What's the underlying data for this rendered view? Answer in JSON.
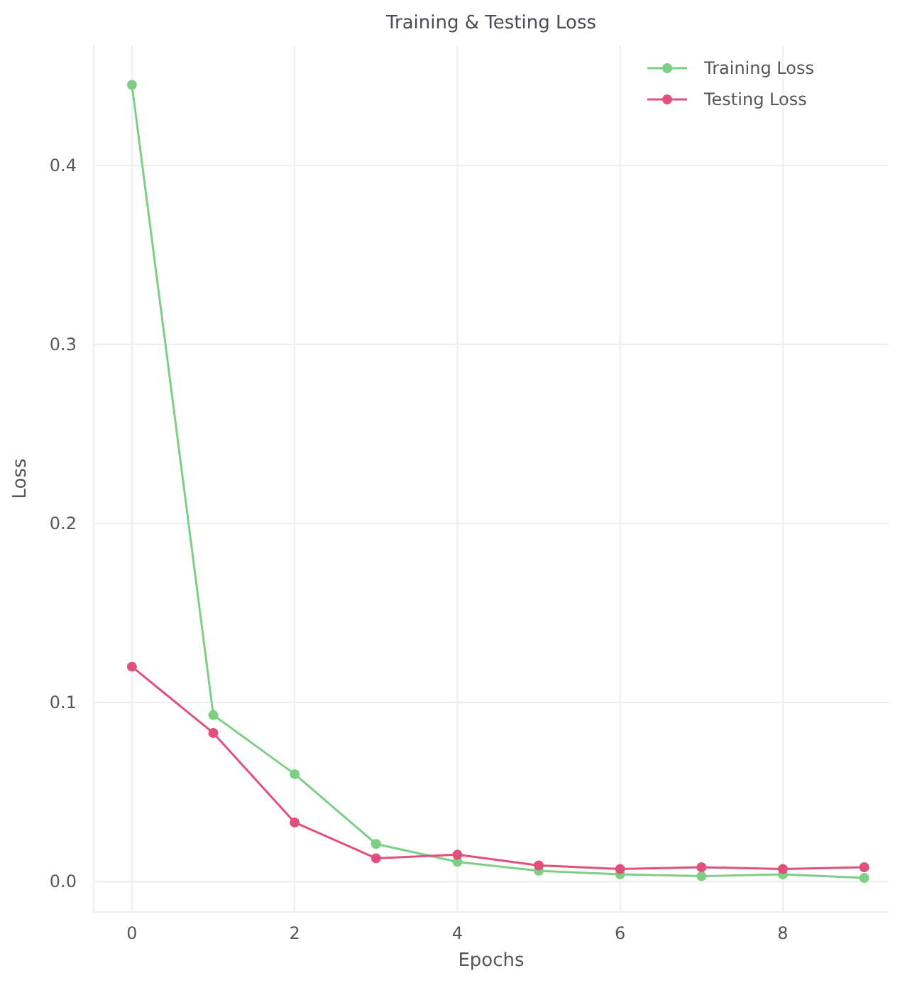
{
  "chart_data": {
    "type": "line",
    "title": "Training & Testing Loss",
    "xlabel": "Epochs",
    "ylabel": "Loss",
    "x": [
      0,
      1,
      2,
      3,
      4,
      5,
      6,
      7,
      8,
      9
    ],
    "series": [
      {
        "name": "Training Loss",
        "color": "#7dcf85",
        "values": [
          0.445,
          0.093,
          0.06,
          0.021,
          0.011,
          0.006,
          0.004,
          0.003,
          0.004,
          0.002
        ]
      },
      {
        "name": "Testing Loss",
        "color": "#e0507a",
        "values": [
          0.12,
          0.083,
          0.033,
          0.013,
          0.015,
          0.009,
          0.007,
          0.008,
          0.007,
          0.008
        ]
      }
    ],
    "xlim": [
      -0.47,
      9.3
    ],
    "ylim": [
      -0.017,
      0.467
    ],
    "xticks": [
      0,
      2,
      4,
      6,
      8
    ],
    "yticks": [
      {
        "value": 0,
        "label": "0.0"
      },
      0.1,
      0.2,
      0.3,
      0.4
    ],
    "grid": true,
    "legend": "top right",
    "marker": "circle",
    "line_style": "solid"
  }
}
